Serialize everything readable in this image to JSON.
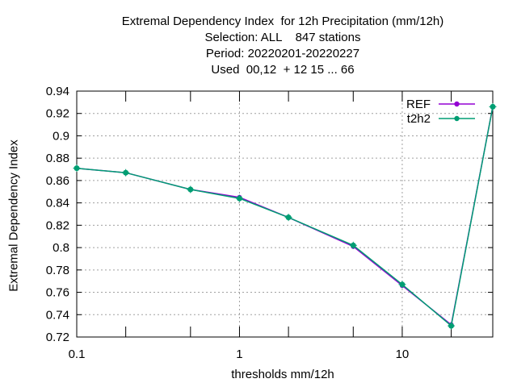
{
  "chart_data": {
    "type": "line",
    "title_lines": [
      "Extremal Dependency Index  for 12h Precipitation (mm/12h)",
      "Selection: ALL    847 stations",
      "Period: 20220201-20220227",
      "Used  00,12  + 12 15 ... 66"
    ],
    "xlabel": "thresholds mm/12h",
    "ylabel": "Extremal Dependency Index",
    "xscale": "log",
    "xlim": [
      0.1,
      36
    ],
    "ylim": [
      0.72,
      0.94
    ],
    "grid": true,
    "legend_position": "top-right",
    "x_ticks": [
      {
        "value": 0.1,
        "label": "0.1"
      },
      {
        "value": 1,
        "label": "1"
      },
      {
        "value": 10,
        "label": "10"
      }
    ],
    "x_minor_ticks": [
      0.2,
      0.5,
      2,
      5,
      20
    ],
    "y_ticks": [
      {
        "value": 0.72,
        "label": "0.72"
      },
      {
        "value": 0.74,
        "label": "0.74"
      },
      {
        "value": 0.76,
        "label": "0.76"
      },
      {
        "value": 0.78,
        "label": "0.78"
      },
      {
        "value": 0.8,
        "label": "0.8"
      },
      {
        "value": 0.82,
        "label": "0.82"
      },
      {
        "value": 0.84,
        "label": "0.84"
      },
      {
        "value": 0.86,
        "label": "0.86"
      },
      {
        "value": 0.88,
        "label": "0.88"
      },
      {
        "value": 0.9,
        "label": "0.9"
      },
      {
        "value": 0.92,
        "label": "0.92"
      },
      {
        "value": 0.94,
        "label": "0.94"
      }
    ],
    "x": [
      0.1,
      0.2,
      0.5,
      1,
      2,
      5,
      10,
      20,
      36
    ],
    "series": [
      {
        "name": "REF",
        "color": "#9400d3",
        "values": [
          0.871,
          0.867,
          0.852,
          0.845,
          0.827,
          0.801,
          0.766,
          0.731,
          0.926
        ]
      },
      {
        "name": "t2h2",
        "color": "#009e73",
        "values": [
          0.871,
          0.867,
          0.852,
          0.844,
          0.827,
          0.802,
          0.767,
          0.73,
          0.926
        ]
      }
    ]
  }
}
